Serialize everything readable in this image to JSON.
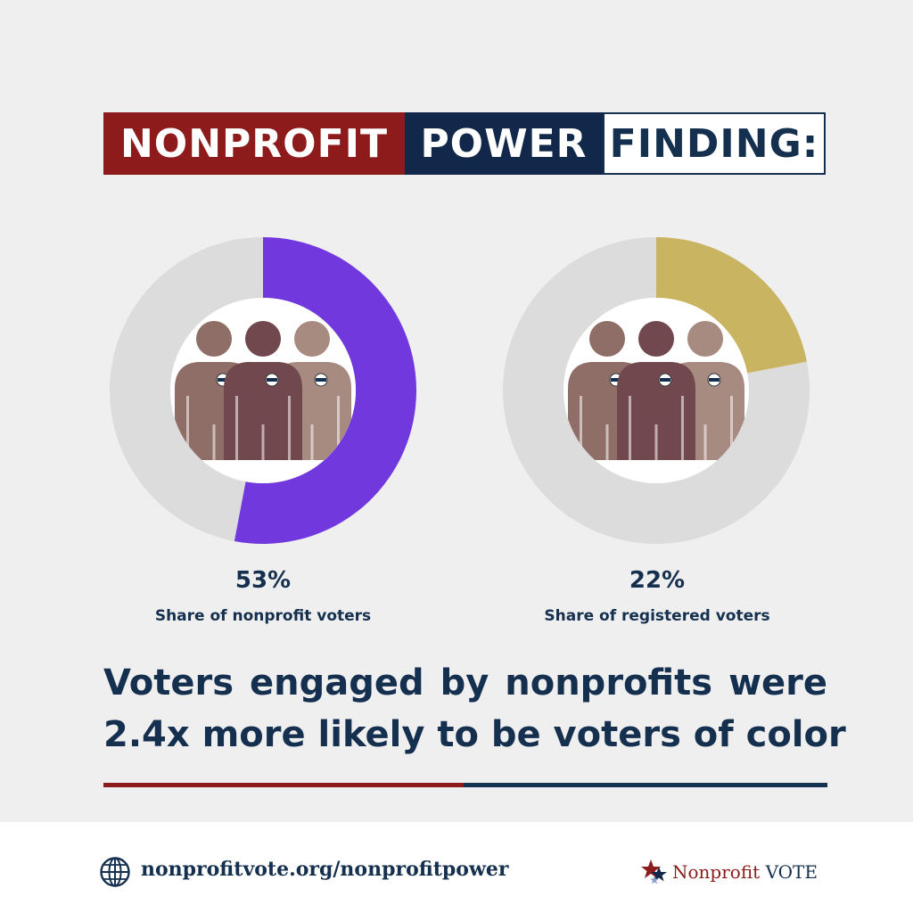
{
  "banner": {
    "word1": "NONPROFIT",
    "word2": "POWER",
    "word3": "FINDING:"
  },
  "colors": {
    "red": "#8d1b1b",
    "navy": "#11284a",
    "text_navy": "#15304f",
    "purple": "#7138dd",
    "gold": "#c9b461",
    "ring_gray": "#dcdcdc",
    "figure_light": "#a78a80",
    "figure_mid": "#8e6e66",
    "figure_dark": "#71484d"
  },
  "chart_data": [
    {
      "type": "pie",
      "style": "donut",
      "slices": [
        {
          "label": "Share of nonprofit voters",
          "value": 53
        },
        {
          "label": "",
          "value": 47
        }
      ],
      "value_label": "53%",
      "label": "Share of nonprofit voters",
      "icon": "three-voters-icon"
    },
    {
      "type": "pie",
      "style": "donut",
      "slices": [
        {
          "label": "Share of registered voters",
          "value": 22
        },
        {
          "label": "",
          "value": 78
        }
      ],
      "value_label": "22%",
      "label": "Share of registered voters",
      "icon": "three-voters-icon"
    }
  ],
  "badge_text": "VOTE",
  "headline": {
    "line1": "Voters engaged by nonprofits were",
    "line2_strong": "2.4x",
    "line2_rest": " more likely to be voters of color"
  },
  "footer": {
    "url": "nonprofitvote.org/nonprofitpower",
    "globe_icon": "globe-icon",
    "logo_text_a": "Nonprofit",
    "logo_text_b": "VOTE",
    "logo_icon": "stars-icon"
  }
}
